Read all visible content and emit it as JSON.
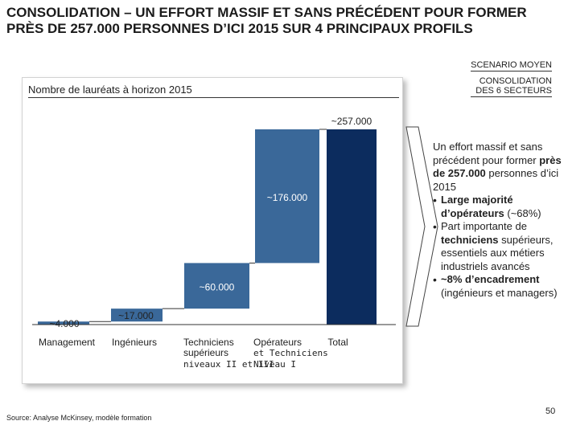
{
  "title": "CONSOLIDATION – UN EFFORT MASSIF ET SANS PRÉCÉDENT POUR FORMER PRÈS DE 257.000 PERSONNES D’ICI 2015 SUR 4 PRINCIPAUX PROFILS",
  "scenario": {
    "line1": "SCENARIO MOYEN",
    "line2a": "CONSOLIDATION",
    "line2b": "DES 6 SECTEURS"
  },
  "chart_title": "Nombre de lauréats à horizon 2015",
  "colors": {
    "bar": "#3a6899",
    "total": "#0c2c5e",
    "connector": "#333333"
  },
  "chart_data": {
    "type": "bar",
    "subtype": "waterfall",
    "title": "Nombre de lauréats à horizon 2015",
    "categories": [
      "Management",
      "Ingénieurs",
      "Techniciens supérieurs niveaux II et III",
      "Opérateurs et Techniciens Niveau I",
      "Total"
    ],
    "values": [
      4000,
      17000,
      60000,
      176000,
      257000
    ],
    "bases": [
      0,
      4000,
      21000,
      81000,
      0
    ],
    "labels": [
      "~4.000",
      "~17.000",
      "~60.000",
      "~176.000",
      "~257.000"
    ],
    "ylim": [
      0,
      257000
    ]
  },
  "categories_text": {
    "cat1": "Management",
    "cat2": "Ingénieurs",
    "cat3_l1": "Techniciens",
    "cat3_l2": "supérieurs",
    "cat3_l3": "niveaux II et III",
    "cat4_l1": "Opérateurs",
    "cat4_l2": "et Techniciens",
    "cat4_l3": "Niveau I",
    "cat5": "Total"
  },
  "right_panel": {
    "intro1": "Un effort massif et sans précédent pour former ",
    "intro_bold": "près de 257.000",
    "intro2": " personnes d’ici 2015",
    "b1_bold": "Large majorité d’opérateurs",
    "b1_rest": " (~68%)",
    "b2_a": "Part importante de ",
    "b2_bold": "techniciens",
    "b2_rest": " supérieurs, essentiels aux métiers industriels avancés",
    "b3_bold": "~8% d’encadrement",
    "b3_rest": " (ingénieurs et managers)"
  },
  "source": "Source:   Analyse McKinsey, modèle formation",
  "page_number": "50"
}
